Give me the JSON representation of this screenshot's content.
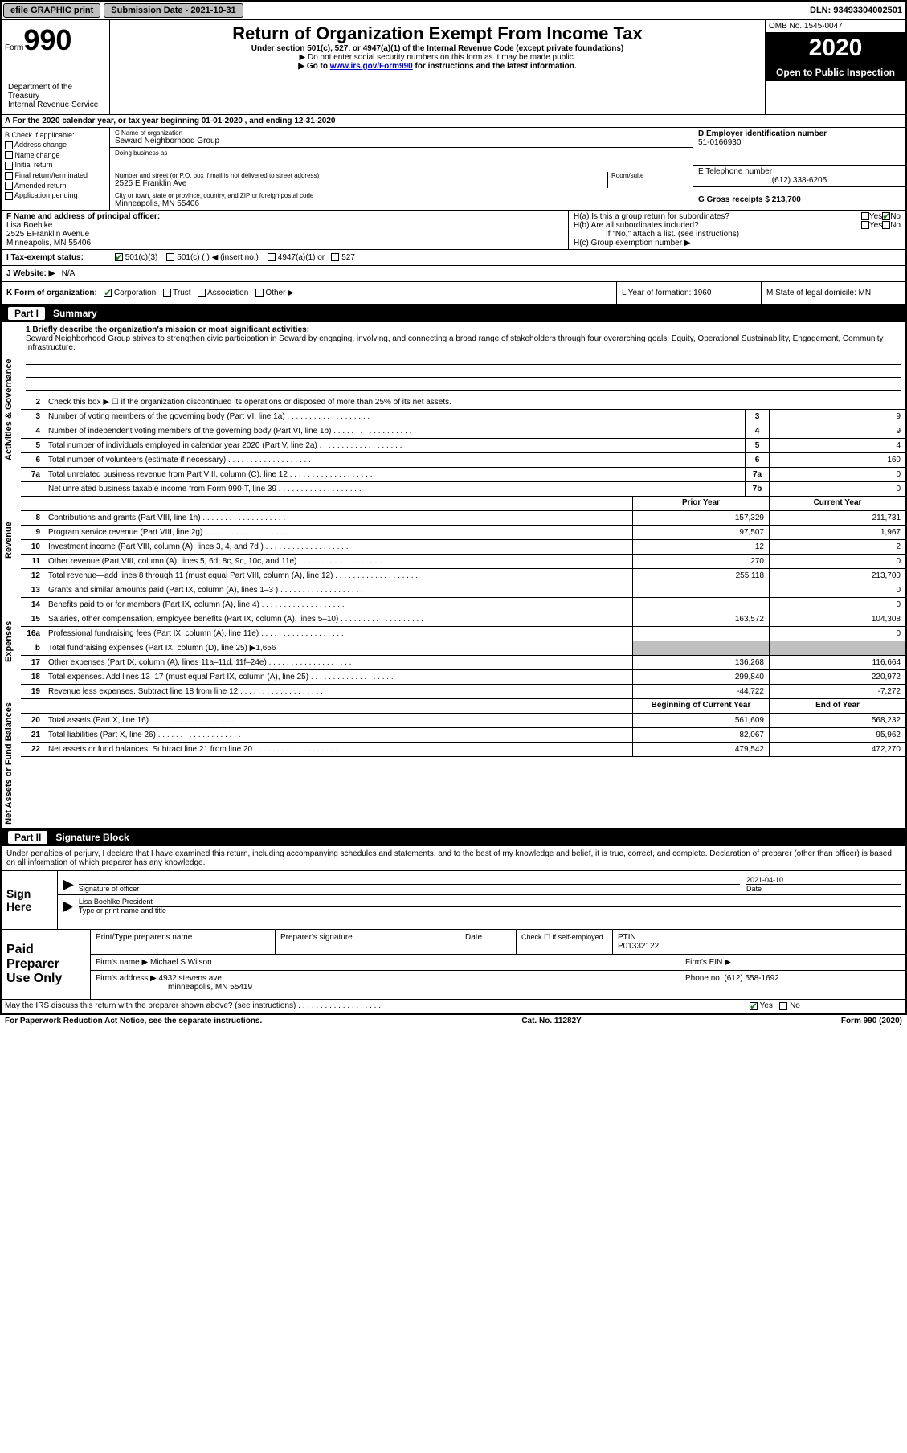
{
  "topbar": {
    "efile": "efile GRAPHIC print",
    "submission_label": "Submission Date - 2021-10-31",
    "dln_label": "DLN: 93493304002501"
  },
  "header": {
    "form_word": "Form",
    "form_num": "990",
    "dept": "Department of the Treasury\nInternal Revenue Service",
    "title": "Return of Organization Exempt From Income Tax",
    "sub1": "Under section 501(c), 527, or 4947(a)(1) of the Internal Revenue Code (except private foundations)",
    "sub2": "▶ Do not enter social security numbers on this form as it may be made public.",
    "sub3_pre": "▶ Go to ",
    "sub3_link": "www.irs.gov/Form990",
    "sub3_post": " for instructions and the latest information.",
    "omb": "OMB No. 1545-0047",
    "year": "2020",
    "inspect": "Open to Public Inspection"
  },
  "row_a": "A For the 2020 calendar year, or tax year beginning 01-01-2020     , and ending 12-31-2020",
  "col_b": {
    "label": "B Check if applicable:",
    "items": [
      "Address change",
      "Name change",
      "Initial return",
      "Final return/terminated",
      "Amended return",
      "Application pending"
    ]
  },
  "col_c": {
    "name_label": "C Name of organization",
    "name": "Seward Neighborhood Group",
    "dba_label": "Doing business as",
    "addr_label": "Number and street (or P.O. box if mail is not delivered to street address)",
    "room_label": "Room/suite",
    "addr": "2525 E Franklin Ave",
    "city_label": "City or town, state or province, country, and ZIP or foreign postal code",
    "city": "Minneapolis, MN  55406"
  },
  "col_d": {
    "ein_label": "D Employer identification number",
    "ein": "51-0166930",
    "phone_label": "E Telephone number",
    "phone": "(612) 338-6205",
    "gross_label": "G Gross receipts $ 213,700"
  },
  "row_f": {
    "label": "F  Name and address of principal officer:",
    "name": "Lisa Boehlke",
    "addr1": "2525 EFranklin Avenue",
    "addr2": "Minneapolis, MN  55406"
  },
  "row_h": {
    "a": "H(a)  Is this a group return for subordinates?",
    "b": "H(b)  Are all subordinates included?",
    "b_note": "If \"No,\" attach a list. (see instructions)",
    "c": "H(c)  Group exemption number ▶",
    "yes": "Yes",
    "no": "No"
  },
  "row_i": {
    "label": "I  Tax-exempt status:",
    "opt1": "501(c)(3)",
    "opt2": "501(c) (  ) ◀ (insert no.)",
    "opt3": "4947(a)(1) or",
    "opt4": "527"
  },
  "row_j": {
    "label": "J  Website: ▶",
    "value": "N/A"
  },
  "row_k": {
    "label": "K Form of organization:",
    "opts": [
      "Corporation",
      "Trust",
      "Association",
      "Other ▶"
    ],
    "l": "L Year of formation: 1960",
    "m": "M State of legal domicile: MN"
  },
  "parts": {
    "p1": {
      "num": "Part I",
      "title": "Summary"
    },
    "p2": {
      "num": "Part II",
      "title": "Signature Block"
    }
  },
  "mission": {
    "label": "1  Briefly describe the organization's mission or most significant activities:",
    "text": "Seward Neighborhood Group strives to strengthen civic participation in Seward by engaging, involving, and connecting a broad range of stakeholders through four overarching goals: Equity, Operational Sustainability, Engagement, Community Infrastructure."
  },
  "line2": "Check this box ▶ ☐  if the organization discontinued its operations or disposed of more than 25% of its net assets.",
  "vtabs": {
    "gov": "Activities & Governance",
    "rev": "Revenue",
    "exp": "Expenses",
    "net": "Net Assets or Fund Balances"
  },
  "lines_gov": [
    {
      "n": "3",
      "d": "Number of voting members of the governing body (Part VI, line 1a)",
      "box": "3",
      "v": "9"
    },
    {
      "n": "4",
      "d": "Number of independent voting members of the governing body (Part VI, line 1b)",
      "box": "4",
      "v": "9"
    },
    {
      "n": "5",
      "d": "Total number of individuals employed in calendar year 2020 (Part V, line 2a)",
      "box": "5",
      "v": "4"
    },
    {
      "n": "6",
      "d": "Total number of volunteers (estimate if necessary)",
      "box": "6",
      "v": "160"
    },
    {
      "n": "7a",
      "d": "Total unrelated business revenue from Part VIII, column (C), line 12",
      "box": "7a",
      "v": "0"
    },
    {
      "n": "",
      "d": "Net unrelated business taxable income from Form 990-T, line 39",
      "box": "7b",
      "v": "0"
    }
  ],
  "hdr_py": "Prior Year",
  "hdr_cy": "Current Year",
  "lines_rev": [
    {
      "n": "8",
      "d": "Contributions and grants (Part VIII, line 1h)",
      "py": "157,329",
      "cy": "211,731"
    },
    {
      "n": "9",
      "d": "Program service revenue (Part VIII, line 2g)",
      "py": "97,507",
      "cy": "1,967"
    },
    {
      "n": "10",
      "d": "Investment income (Part VIII, column (A), lines 3, 4, and 7d )",
      "py": "12",
      "cy": "2"
    },
    {
      "n": "11",
      "d": "Other revenue (Part VIII, column (A), lines 5, 6d, 8c, 9c, 10c, and 11e)",
      "py": "270",
      "cy": "0"
    },
    {
      "n": "12",
      "d": "Total revenue—add lines 8 through 11 (must equal Part VIII, column (A), line 12)",
      "py": "255,118",
      "cy": "213,700"
    }
  ],
  "lines_exp": [
    {
      "n": "13",
      "d": "Grants and similar amounts paid (Part IX, column (A), lines 1–3 )",
      "py": "",
      "cy": "0"
    },
    {
      "n": "14",
      "d": "Benefits paid to or for members (Part IX, column (A), line 4)",
      "py": "",
      "cy": "0"
    },
    {
      "n": "15",
      "d": "Salaries, other compensation, employee benefits (Part IX, column (A), lines 5–10)",
      "py": "163,572",
      "cy": "104,308"
    },
    {
      "n": "16a",
      "d": "Professional fundraising fees (Part IX, column (A), line 11e)",
      "py": "",
      "cy": "0"
    }
  ],
  "line_16b": {
    "n": "b",
    "d": "Total fundraising expenses (Part IX, column (D), line 25) ▶1,656"
  },
  "lines_exp2": [
    {
      "n": "17",
      "d": "Other expenses (Part IX, column (A), lines 11a–11d, 11f–24e)",
      "py": "136,268",
      "cy": "116,664"
    },
    {
      "n": "18",
      "d": "Total expenses. Add lines 13–17 (must equal Part IX, column (A), line 25)",
      "py": "299,840",
      "cy": "220,972"
    },
    {
      "n": "19",
      "d": "Revenue less expenses. Subtract line 18 from line 12",
      "py": "-44,722",
      "cy": "-7,272"
    }
  ],
  "hdr_bcy": "Beginning of Current Year",
  "hdr_ey": "End of Year",
  "lines_net": [
    {
      "n": "20",
      "d": "Total assets (Part X, line 16)",
      "py": "561,609",
      "cy": "568,232"
    },
    {
      "n": "21",
      "d": "Total liabilities (Part X, line 26)",
      "py": "82,067",
      "cy": "95,962"
    },
    {
      "n": "22",
      "d": "Net assets or fund balances. Subtract line 21 from line 20",
      "py": "479,542",
      "cy": "472,270"
    }
  ],
  "sig": {
    "perjury": "Under penalties of perjury, I declare that I have examined this return, including accompanying schedules and statements, and to the best of my knowledge and belief, it is true, correct, and complete. Declaration of preparer (other than officer) is based on all information of which preparer has any knowledge.",
    "sign_here": "Sign Here",
    "sig_officer": "Signature of officer",
    "date_label": "Date",
    "date": "2021-04-10",
    "name": "Lisa Boehlke  President",
    "name_label": "Type or print name and title"
  },
  "prep": {
    "title": "Paid Preparer Use Only",
    "h1": "Print/Type preparer's name",
    "h2": "Preparer's signature",
    "h3": "Date",
    "h4_a": "Check ☐  if self-employed",
    "h4_b": "PTIN",
    "ptin": "P01332122",
    "firm_name_label": "Firm's name     ▶",
    "firm_name": "Michael S Wilson",
    "firm_ein_label": "Firm's EIN ▶",
    "firm_addr_label": "Firm's address ▶",
    "firm_addr": "4932 stevens ave",
    "firm_city": "minneapolis, MN  55419",
    "phone_label": "Phone no. (612) 558-1692"
  },
  "discuss": "May the IRS discuss this return with the preparer shown above? (see instructions)",
  "footer": {
    "left": "For Paperwork Reduction Act Notice, see the separate instructions.",
    "mid": "Cat. No. 11282Y",
    "right": "Form 990 (2020)"
  }
}
